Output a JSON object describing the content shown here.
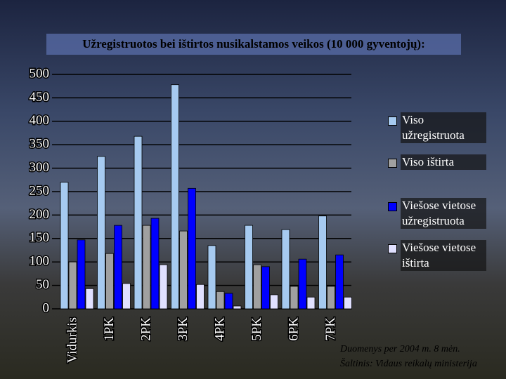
{
  "chart_data": {
    "type": "bar",
    "title": "Užregistruotos bei ištirtos nusikalstamos veikos (10 000 gyventojų):",
    "categories": [
      "Vidurkis",
      "1PK",
      "2PK",
      "3PK",
      "4PK",
      "5PK",
      "6PK",
      "7PK"
    ],
    "series": [
      {
        "name": "Viso užregistruota",
        "color": "#a6caf0",
        "values": [
          270,
          325,
          368,
          478,
          135,
          178,
          169,
          198
        ]
      },
      {
        "name": "Viso ištirta",
        "color": "#a0a0a0",
        "values": [
          100,
          118,
          178,
          166,
          37,
          94,
          48,
          48
        ]
      },
      {
        "name": "Viešose vietose užregistruota",
        "color": "#0000ff",
        "values": [
          147,
          178,
          193,
          257,
          33,
          90,
          106,
          115
        ]
      },
      {
        "name": "Viešose vietose ištirta",
        "color": "#e0e0ff",
        "values": [
          43,
          54,
          94,
          52,
          6,
          30,
          25,
          25
        ]
      }
    ],
    "ylim": [
      0,
      500
    ],
    "yticks": [
      0,
      50,
      100,
      150,
      200,
      250,
      300,
      350,
      400,
      450,
      500
    ],
    "grid": true,
    "legend": "right",
    "notes": [
      "Duomenys per 2004 m. 8 mėn.",
      "Šaltinis: Vidaus reikalų ministerija"
    ]
  }
}
